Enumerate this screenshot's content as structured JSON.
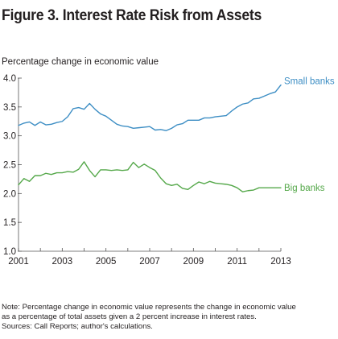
{
  "figure": {
    "title": "Figure 3. Interest Rate Risk from Assets"
  },
  "notes": {
    "line1": "Note: Percentage change in economic value represents the change in economic value",
    "line2": "as a percentage of total assets given a 2 percent increase in interest rates.",
    "line3": "Sources: Call Reports; author's calculations."
  },
  "colors": {
    "small_banks": "#3d8ec4",
    "big_banks": "#55a84a",
    "axis": "#555555",
    "grid": "#e6e6e6"
  },
  "chart_data": {
    "type": "line",
    "title": "",
    "ylabel": "Percentage change in economic value",
    "xlabel": "",
    "xlim": [
      2001,
      2013
    ],
    "ylim": [
      1.0,
      4.0
    ],
    "x_ticks": [
      "2001",
      "2003",
      "2005",
      "2007",
      "2009",
      "2011",
      "2013"
    ],
    "y_ticks": [
      "1.0",
      "1.5",
      "2.0",
      "2.5",
      "3.0",
      "3.5",
      "4.0"
    ],
    "grid": false,
    "legend": "inline labels at right end of each series",
    "series": [
      {
        "name": "Small banks",
        "color": "#3d8ec4",
        "x": [
          2001.0,
          2001.25,
          2001.5,
          2001.75,
          2002.0,
          2002.25,
          2002.5,
          2002.75,
          2003.0,
          2003.25,
          2003.5,
          2003.75,
          2004.0,
          2004.25,
          2004.5,
          2004.75,
          2005.0,
          2005.25,
          2005.5,
          2005.75,
          2006.0,
          2006.25,
          2006.5,
          2006.75,
          2007.0,
          2007.25,
          2007.5,
          2007.75,
          2008.0,
          2008.25,
          2008.5,
          2008.75,
          2009.0,
          2009.25,
          2009.5,
          2009.75,
          2010.0,
          2010.25,
          2010.5,
          2010.75,
          2011.0,
          2011.25,
          2011.5,
          2011.75,
          2012.0,
          2012.25,
          2012.5,
          2012.75,
          2013.0
        ],
        "y": [
          3.18,
          3.22,
          3.24,
          3.18,
          3.24,
          3.19,
          3.2,
          3.23,
          3.25,
          3.33,
          3.47,
          3.49,
          3.46,
          3.56,
          3.46,
          3.38,
          3.34,
          3.27,
          3.2,
          3.17,
          3.16,
          3.13,
          3.14,
          3.15,
          3.16,
          3.1,
          3.11,
          3.09,
          3.13,
          3.19,
          3.21,
          3.27,
          3.27,
          3.27,
          3.31,
          3.31,
          3.33,
          3.34,
          3.35,
          3.43,
          3.5,
          3.55,
          3.57,
          3.64,
          3.65,
          3.69,
          3.73,
          3.76,
          3.88
        ]
      },
      {
        "name": "Big banks",
        "color": "#55a84a",
        "x": [
          2001.0,
          2001.25,
          2001.5,
          2001.75,
          2002.0,
          2002.25,
          2002.5,
          2002.75,
          2003.0,
          2003.25,
          2003.5,
          2003.75,
          2004.0,
          2004.25,
          2004.5,
          2004.75,
          2005.0,
          2005.25,
          2005.5,
          2005.75,
          2006.0,
          2006.25,
          2006.5,
          2006.75,
          2007.0,
          2007.25,
          2007.5,
          2007.75,
          2008.0,
          2008.25,
          2008.5,
          2008.75,
          2009.0,
          2009.25,
          2009.5,
          2009.75,
          2010.0,
          2010.25,
          2010.5,
          2010.75,
          2011.0,
          2011.25,
          2011.5,
          2011.75,
          2012.0,
          2012.25,
          2012.5,
          2012.75,
          2013.0
        ],
        "y": [
          2.15,
          2.26,
          2.21,
          2.31,
          2.31,
          2.35,
          2.33,
          2.36,
          2.36,
          2.38,
          2.37,
          2.42,
          2.55,
          2.4,
          2.29,
          2.41,
          2.41,
          2.4,
          2.41,
          2.4,
          2.41,
          2.54,
          2.45,
          2.51,
          2.45,
          2.4,
          2.27,
          2.17,
          2.14,
          2.16,
          2.09,
          2.07,
          2.14,
          2.2,
          2.17,
          2.21,
          2.18,
          2.17,
          2.16,
          2.14,
          2.1,
          2.03,
          2.05,
          2.06,
          2.1,
          2.1,
          2.1,
          2.1,
          2.1
        ]
      }
    ]
  }
}
